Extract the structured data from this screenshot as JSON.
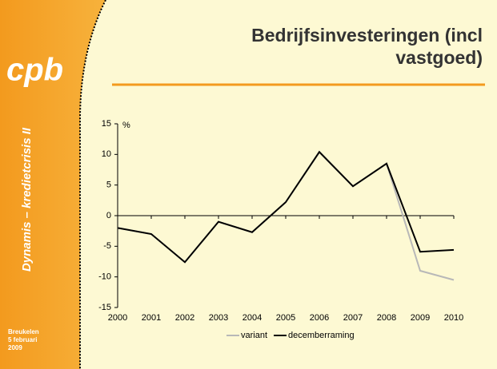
{
  "sidebar": {
    "logo": "cpb",
    "subtitle": "Dynamis – kredietcrisis II",
    "place": "Breukelen",
    "date": "5 februari",
    "year": "2009"
  },
  "chart_data": {
    "type": "line",
    "title": "Bedrijfsinvesteringen (incl vastgoed)",
    "y_label": "%",
    "x": [
      2000,
      2001,
      2002,
      2003,
      2004,
      2005,
      2006,
      2007,
      2008,
      2009,
      2010
    ],
    "xlim": [
      2000,
      2010
    ],
    "xticks": [
      2000,
      2001,
      2002,
      2003,
      2004,
      2005,
      2006,
      2007,
      2008,
      2009,
      2010
    ],
    "ylim": [
      -15,
      15
    ],
    "yticks": [
      -15,
      -10,
      -5,
      0,
      5,
      10,
      15
    ],
    "legend": "bottom",
    "series": [
      {
        "name": "variant",
        "color": "#b8b8b8",
        "values": [
          -2,
          -3,
          -7.6,
          -1,
          -2.7,
          2.2,
          10.4,
          4.8,
          8.5,
          -9,
          -10.5
        ]
      },
      {
        "name": "decemberraming",
        "color": "#000000",
        "values": [
          -2,
          -3,
          -7.6,
          -1,
          -2.7,
          2.2,
          10.4,
          4.8,
          8.5,
          -5.9,
          -5.6
        ]
      }
    ]
  }
}
